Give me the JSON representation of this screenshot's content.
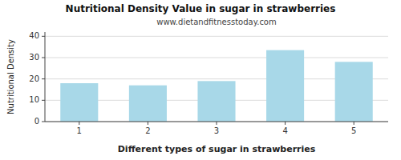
{
  "chart_data": {
    "type": "bar",
    "title": "Nutritional Density Value in sugar in strawberries",
    "subtitle": "www.dietandfitnesstoday.com",
    "xlabel": "Different types of sugar in strawberries",
    "ylabel": "Nutritional Density",
    "categories": [
      1,
      2,
      3,
      4,
      5
    ],
    "values": [
      18.0,
      17.0,
      19.0,
      33.5,
      28.0
    ],
    "color": "#a8d8e8",
    "ylim": [
      0,
      42
    ],
    "yticks": [
      0,
      10,
      20,
      30,
      40
    ],
    "grid": true
  }
}
